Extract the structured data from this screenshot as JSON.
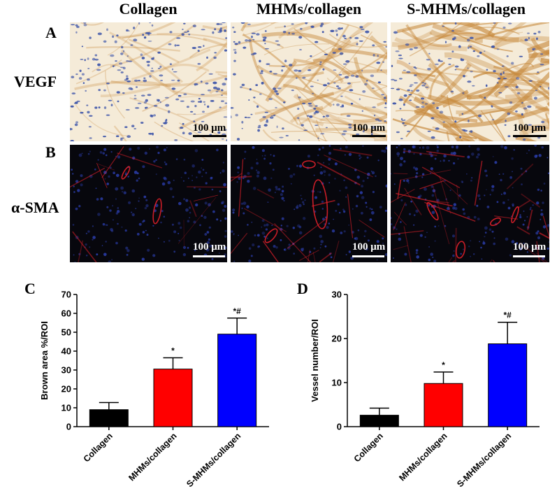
{
  "columns": [
    "Collagen",
    "MHMs/collagen",
    "S-MHMs/collagen"
  ],
  "row_a": {
    "letter": "A",
    "label": "VEGF",
    "scale_text": "100 μm",
    "colors": {
      "bg": "#f5ebd8",
      "stain": "#c78a3e",
      "nuclei": "#3a52a8"
    }
  },
  "row_b": {
    "letter": "B",
    "label": "α-SMA",
    "scale_text": "100 μm",
    "colors": {
      "bg": "#07070d",
      "vessel": "#e0202a",
      "nuclei": "#2c3fb0"
    }
  },
  "chart_data": [
    {
      "type": "bar",
      "panel": "C",
      "categories": [
        "Collagen",
        "MHMs/collagen",
        "S-MHMs/collagen"
      ],
      "values": [
        9,
        30.5,
        49
      ],
      "errors": [
        3.8,
        6,
        8.5
      ],
      "annotations": [
        "",
        "*",
        "*#"
      ],
      "colors": [
        "#000000",
        "#ff0000",
        "#0000ff"
      ],
      "ylabel": "Brown area %/ROI",
      "ylim": [
        0,
        70
      ],
      "yticks": [
        0,
        10,
        20,
        30,
        40,
        50,
        60,
        70
      ]
    },
    {
      "type": "bar",
      "panel": "D",
      "categories": [
        "Collagen",
        "MHMs/collagen",
        "S-MHMs/collagen"
      ],
      "values": [
        2.6,
        9.8,
        18.8
      ],
      "errors": [
        1.6,
        2.6,
        4.9
      ],
      "annotations": [
        "",
        "*",
        "*#"
      ],
      "colors": [
        "#000000",
        "#ff0000",
        "#0000ff"
      ],
      "ylabel": "Vessel number/ROI",
      "ylim": [
        0,
        30
      ],
      "yticks": [
        0,
        10,
        20,
        30
      ]
    }
  ]
}
